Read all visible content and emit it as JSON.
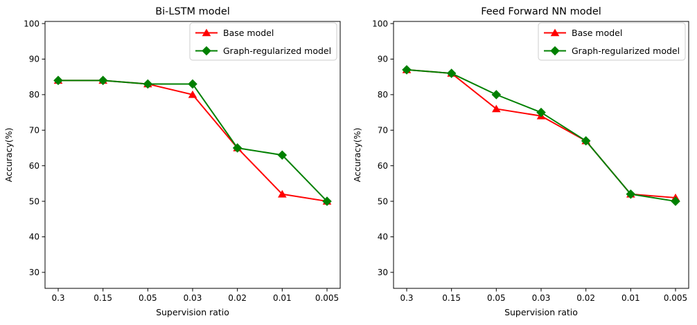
{
  "figure": {
    "background": "#ffffff",
    "text_color": "#000000",
    "legend_border_color": "#cccccc",
    "axis_color": "#000000"
  },
  "chart_data": [
    {
      "type": "line",
      "title": "Bi-LSTM model",
      "xlabel": "Supervision ratio",
      "ylabel": "Accuracy(%)",
      "categories": [
        "0.3",
        "0.15",
        "0.05",
        "0.03",
        "0.02",
        "0.01",
        "0.005"
      ],
      "yticks": [
        100,
        90,
        80,
        70,
        60,
        50,
        40,
        30
      ],
      "ylim": [
        25.5,
        100.6
      ],
      "grid": false,
      "legend_position": "upper right",
      "series": [
        {
          "name": "Base model",
          "color": "#ff0000",
          "marker": "triangle-up",
          "values": [
            84,
            84,
            83,
            80,
            65,
            52,
            50
          ]
        },
        {
          "name": "Graph-regularized model",
          "color": "#008000",
          "marker": "diamond",
          "values": [
            84,
            84,
            83,
            83,
            65,
            63,
            50
          ]
        }
      ]
    },
    {
      "type": "line",
      "title": "Feed Forward NN model",
      "xlabel": "Supervision ratio",
      "ylabel": "Accuracy(%)",
      "categories": [
        "0.3",
        "0.15",
        "0.05",
        "0.03",
        "0.02",
        "0.01",
        "0.005"
      ],
      "yticks": [
        100,
        90,
        80,
        70,
        60,
        50,
        40,
        30
      ],
      "ylim": [
        25.5,
        100.6
      ],
      "grid": false,
      "legend_position": "upper right",
      "series": [
        {
          "name": "Base model",
          "color": "#ff0000",
          "marker": "triangle-up",
          "values": [
            87,
            86,
            76,
            74,
            67,
            52,
            51
          ]
        },
        {
          "name": "Graph-regularized model",
          "color": "#008000",
          "marker": "diamond",
          "values": [
            87,
            86,
            80,
            75,
            67,
            52,
            50
          ]
        }
      ]
    }
  ]
}
